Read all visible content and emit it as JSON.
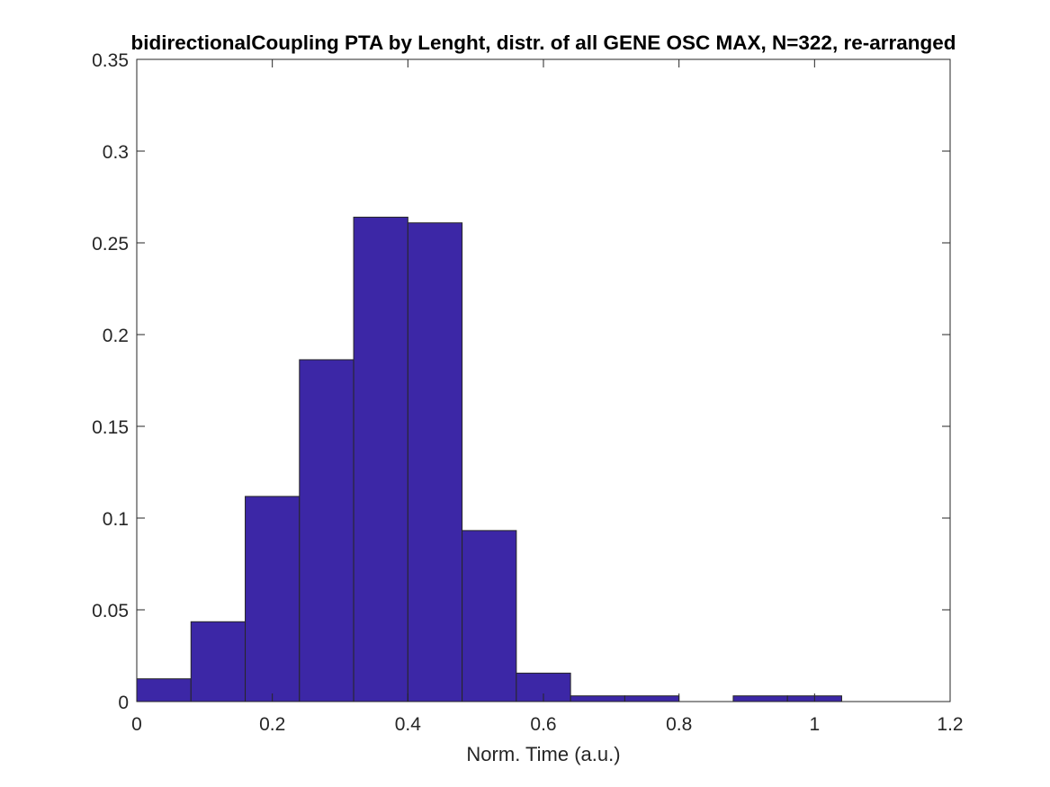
{
  "chart_data": {
    "type": "bar",
    "title": "bidirectionalCoupling PTA by Lenght, distr. of all GENE OSC MAX, N=322, re-arranged",
    "xlabel": "Norm. Time (a.u.)",
    "ylabel": "",
    "bin_edges": [
      0,
      0.08,
      0.16,
      0.24,
      0.32,
      0.4,
      0.48,
      0.56,
      0.64,
      0.72,
      0.8,
      0.88,
      0.96,
      1.04
    ],
    "values": [
      0.0124,
      0.0435,
      0.1118,
      0.1863,
      0.264,
      0.2609,
      0.0932,
      0.0155,
      0.0031,
      0.0031,
      0.0,
      0.0031,
      0.0031
    ],
    "xlim": [
      0,
      1.2
    ],
    "ylim": [
      0,
      0.35
    ],
    "xticks": [
      0,
      0.2,
      0.4,
      0.6,
      0.8,
      1.0,
      1.2
    ],
    "xtick_labels": [
      "0",
      "0.2",
      "0.4",
      "0.6",
      "0.8",
      "1",
      "1.2"
    ],
    "yticks": [
      0,
      0.05,
      0.1,
      0.15,
      0.2,
      0.25,
      0.3,
      0.35
    ],
    "ytick_labels": [
      "0",
      "0.05",
      "0.1",
      "0.15",
      "0.2",
      "0.25",
      "0.3",
      "0.35"
    ],
    "grid": false,
    "legend": "none",
    "bar_color": "#3C27A6",
    "edge_color": "#262626",
    "axis_color": "#262626"
  }
}
